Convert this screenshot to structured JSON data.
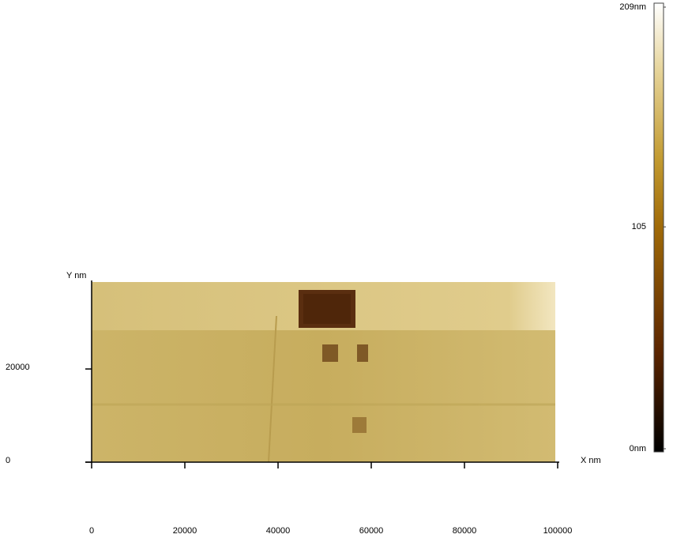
{
  "chart_data": {
    "type": "image",
    "x_label": "X nm",
    "y_label": "Y nm",
    "xlim": [
      0,
      100000
    ],
    "xticks": [
      0,
      20000,
      40000,
      60000,
      80000,
      100000
    ],
    "ylim": [
      0,
      39000
    ],
    "yticks": [
      0,
      20000
    ],
    "clim": [
      0,
      209
    ],
    "cticks": [
      {
        "value": 0,
        "label": "0nm"
      },
      {
        "value": 105,
        "label": "105"
      },
      {
        "value": 209,
        "label": "209nm"
      }
    ]
  }
}
